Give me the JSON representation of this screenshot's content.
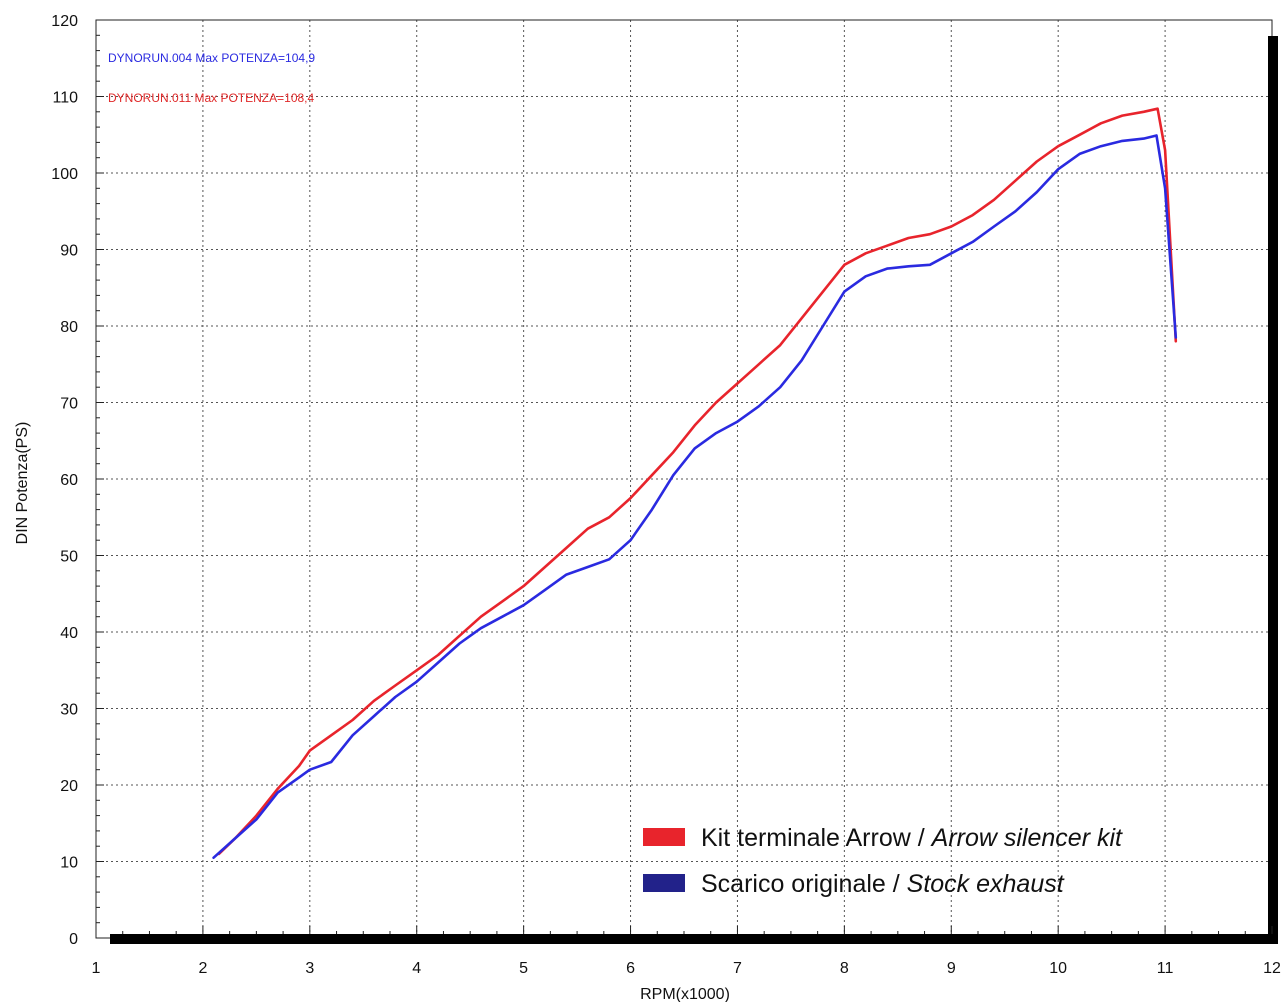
{
  "chart_data": {
    "type": "line",
    "xlabel": "RPM(x1000)",
    "ylabel": "DIN Potenza(PS)",
    "xlim": [
      1,
      12
    ],
    "ylim": [
      0,
      120
    ],
    "x_ticks": [
      1,
      2,
      3,
      4,
      5,
      6,
      7,
      8,
      9,
      10,
      11,
      12
    ],
    "y_ticks": [
      0,
      10,
      20,
      30,
      40,
      50,
      60,
      70,
      80,
      90,
      100,
      110,
      120
    ],
    "grid": true,
    "legend_position": "bottom-right",
    "annotations": [
      {
        "text": "DYNORUN.004  Max POTENZA=104,9",
        "color": "#2a2ae0"
      },
      {
        "text": "DYNORUN.011  Max POTENZA=108,4",
        "color": "#e02a2a"
      }
    ],
    "series": [
      {
        "name": "Kit terminale Arrow / Arrow silencer kit",
        "name_parts": [
          "Kit terminale Arrow / ",
          "Arrow silencer kit"
        ],
        "color": "#e8242c",
        "x": [
          2.15,
          2.3,
          2.5,
          2.7,
          2.9,
          3.0,
          3.2,
          3.4,
          3.6,
          3.8,
          4.0,
          4.2,
          4.4,
          4.6,
          4.8,
          5.0,
          5.2,
          5.4,
          5.6,
          5.8,
          6.0,
          6.2,
          6.4,
          6.6,
          6.8,
          7.0,
          7.2,
          7.4,
          7.6,
          7.8,
          8.0,
          8.2,
          8.4,
          8.6,
          8.8,
          9.0,
          9.2,
          9.4,
          9.6,
          9.8,
          10.0,
          10.2,
          10.4,
          10.6,
          10.8,
          10.93,
          11.0,
          11.1
        ],
        "values": [
          11.0,
          13.0,
          16.0,
          19.5,
          22.5,
          24.5,
          26.5,
          28.5,
          31.0,
          33.0,
          35.0,
          37.0,
          39.5,
          42.0,
          44.0,
          46.0,
          48.5,
          51.0,
          53.5,
          55.0,
          57.5,
          60.5,
          63.5,
          67.0,
          70.0,
          72.5,
          75.0,
          77.5,
          81.0,
          84.5,
          88.0,
          89.5,
          90.5,
          91.5,
          92.0,
          93.0,
          94.5,
          96.5,
          99.0,
          101.5,
          103.5,
          105.0,
          106.5,
          107.5,
          108.0,
          108.4,
          103.0,
          78.0
        ]
      },
      {
        "name": "Scarico originale / Stock exhaust",
        "name_parts": [
          "Scarico originale / ",
          "Stock exhaust"
        ],
        "color": "#2a2ae0",
        "x": [
          2.1,
          2.3,
          2.5,
          2.7,
          2.9,
          3.0,
          3.2,
          3.4,
          3.6,
          3.8,
          4.0,
          4.2,
          4.4,
          4.6,
          4.8,
          5.0,
          5.2,
          5.4,
          5.6,
          5.8,
          6.0,
          6.2,
          6.4,
          6.6,
          6.8,
          7.0,
          7.2,
          7.4,
          7.6,
          7.8,
          8.0,
          8.2,
          8.4,
          8.6,
          8.8,
          9.0,
          9.2,
          9.4,
          9.6,
          9.8,
          10.0,
          10.2,
          10.4,
          10.6,
          10.8,
          10.92,
          11.0,
          11.1
        ],
        "values": [
          10.5,
          13.0,
          15.5,
          19.0,
          21.0,
          22.0,
          23.0,
          26.5,
          29.0,
          31.5,
          33.5,
          36.0,
          38.5,
          40.5,
          42.0,
          43.5,
          45.5,
          47.5,
          48.5,
          49.5,
          52.0,
          56.0,
          60.5,
          64.0,
          66.0,
          67.5,
          69.5,
          72.0,
          75.5,
          80.0,
          84.5,
          86.5,
          87.5,
          87.8,
          88.0,
          89.5,
          91.0,
          93.0,
          95.0,
          97.5,
          100.5,
          102.5,
          103.5,
          104.2,
          104.5,
          104.9,
          98.0,
          78.5
        ]
      }
    ]
  }
}
